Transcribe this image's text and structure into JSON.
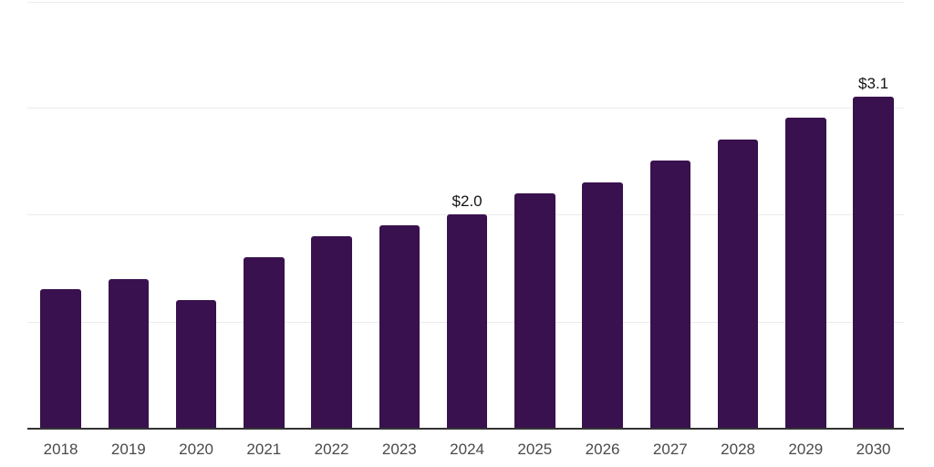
{
  "chart_data": {
    "type": "bar",
    "title": "",
    "xlabel": "",
    "ylabel": "",
    "categories": [
      "2018",
      "2019",
      "2020",
      "2021",
      "2022",
      "2023",
      "2024",
      "2025",
      "2026",
      "2027",
      "2028",
      "2029",
      "2030"
    ],
    "values": [
      1.3,
      1.4,
      1.2,
      1.6,
      1.8,
      1.9,
      2.0,
      2.2,
      2.3,
      2.5,
      2.7,
      2.9,
      3.1
    ],
    "bar_labels": [
      "",
      "",
      "",
      "",
      "",
      "",
      "$2.0",
      "",
      "",
      "",
      "",
      "",
      "$3.1"
    ],
    "ylim": [
      0,
      4
    ],
    "gridline_values": [
      1,
      2,
      3,
      4
    ],
    "grid": true,
    "legend": false,
    "y_axis_tick_labels_visible": false
  },
  "colors": {
    "background": "#ffffff",
    "bar": "#39114e",
    "gridline": "#ebebeb",
    "axis_line": "#333333",
    "tick_label": "#4a4a4a",
    "data_label": "#141414"
  }
}
